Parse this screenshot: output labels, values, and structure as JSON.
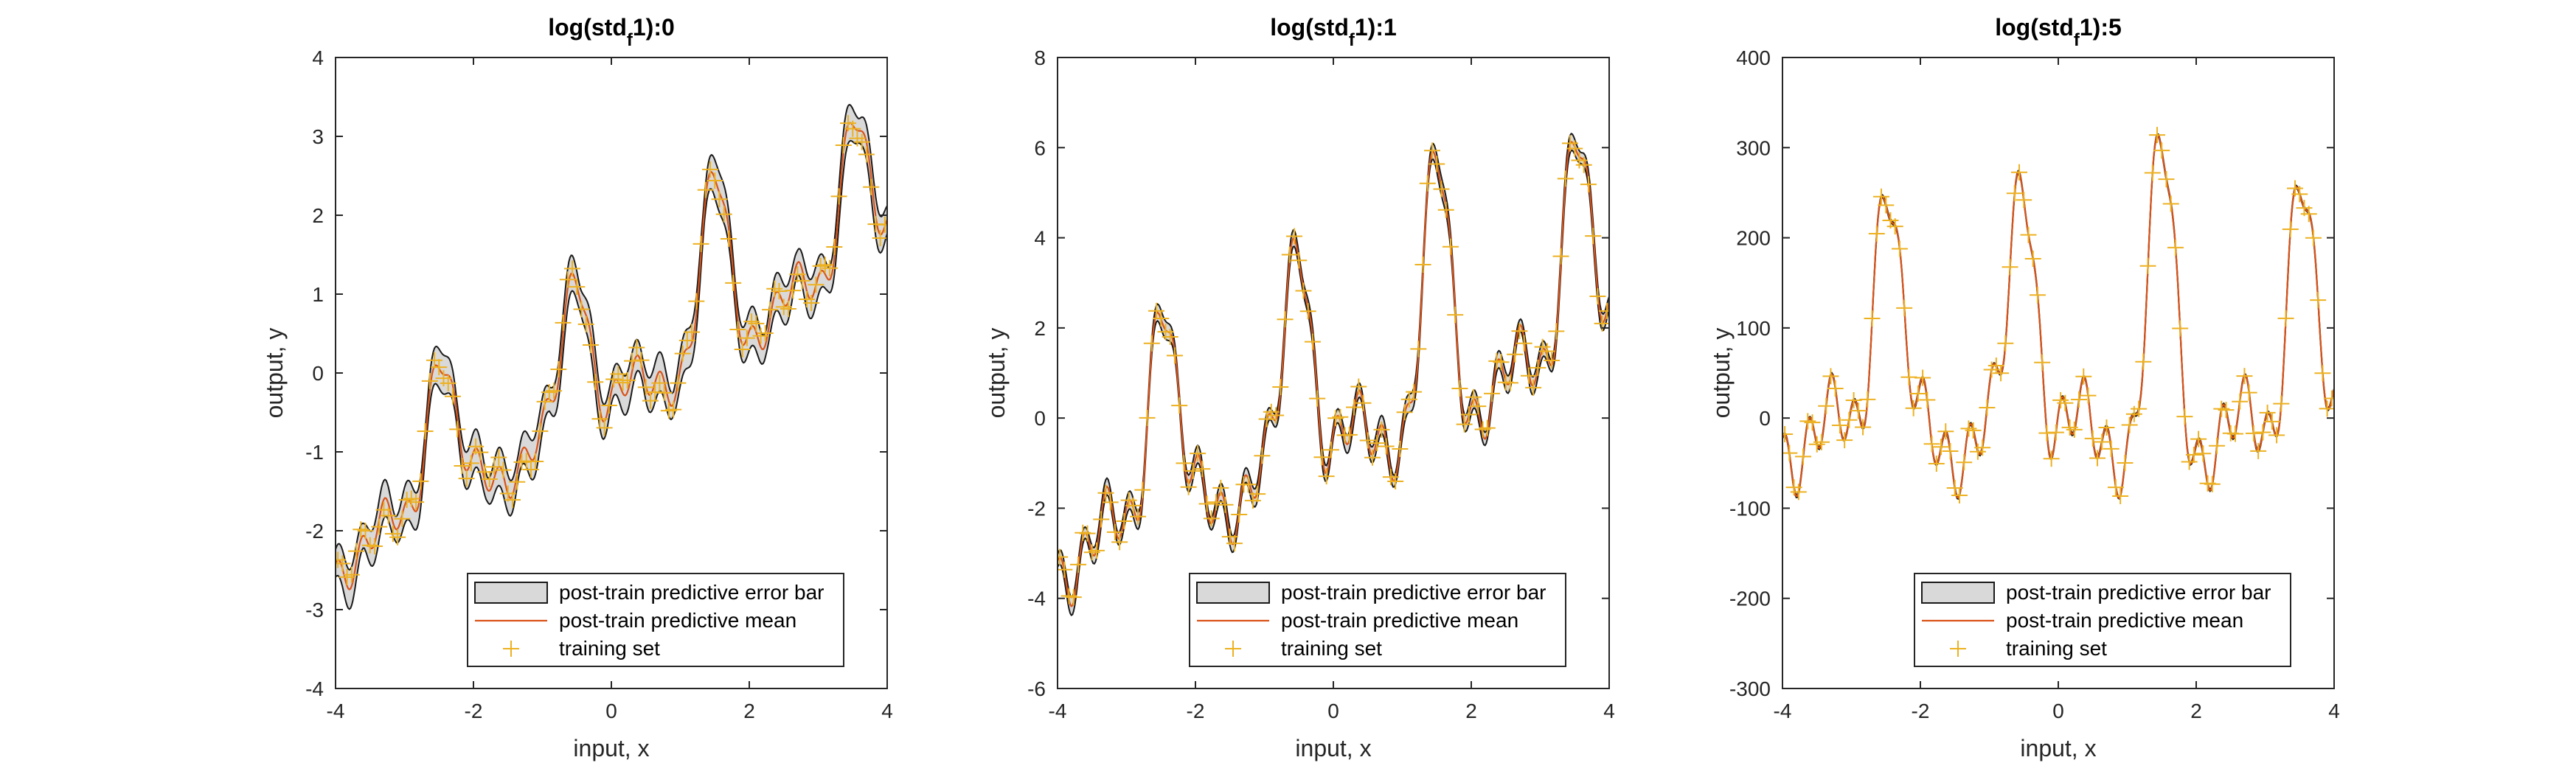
{
  "figure": {
    "colors": {
      "band_fill": "#d9d9d9",
      "band_edge": "#1a1a1a",
      "mean_line": "#d95319",
      "train_marker": "#edb120",
      "axis": "#262626",
      "legend_edge": "#262626"
    },
    "legend": {
      "items": [
        "post-train predictive error bar",
        "post-train predictive mean",
        "training set"
      ],
      "location": "south"
    },
    "xlabel": "input, x",
    "ylabel": "output, y"
  },
  "chart_data": [
    {
      "type": "line",
      "title_main": "log(std",
      "title_sub": "f",
      "title_tail": "1):0",
      "xlim": [
        -4,
        4
      ],
      "ylim": [
        -4,
        4
      ],
      "xticks": [
        -4,
        -2,
        0,
        2,
        4
      ],
      "yticks": [
        -4,
        -3,
        -2,
        -1,
        0,
        1,
        2,
        3,
        4
      ],
      "model": {
        "trend": 0.5,
        "amp": 1.0,
        "offset": 0.0,
        "band": 0.25
      },
      "series": [
        {
          "name": "post-train predictive error bar",
          "kind": "band"
        },
        {
          "name": "post-train predictive mean",
          "kind": "line"
        },
        {
          "name": "training set",
          "kind": "markers"
        }
      ]
    },
    {
      "type": "line",
      "title_main": "log(std",
      "title_sub": "f",
      "title_tail": "1):1",
      "xlim": [
        -4,
        4
      ],
      "ylim": [
        -6,
        8
      ],
      "xticks": [
        -4,
        -2,
        0,
        2,
        4
      ],
      "yticks": [
        -6,
        -4,
        -2,
        0,
        2,
        4,
        6,
        8
      ],
      "model": {
        "trend": 0.6,
        "amp": 2.6,
        "offset": 0.3,
        "band": 0.2
      },
      "series": [
        {
          "name": "post-train predictive error bar",
          "kind": "band"
        },
        {
          "name": "post-train predictive mean",
          "kind": "line"
        },
        {
          "name": "training set",
          "kind": "markers"
        }
      ]
    },
    {
      "type": "line",
      "title_main": "log(std",
      "title_sub": "f",
      "title_tail": "1):5",
      "xlim": [
        -4,
        4
      ],
      "ylim": [
        -300,
        400
      ],
      "xticks": [
        -4,
        -2,
        0,
        2,
        4
      ],
      "yticks": [
        -300,
        -200,
        -100,
        0,
        100,
        200,
        300,
        400
      ],
      "model": {
        "trend": 0.0,
        "amp": 150,
        "offset": 40,
        "band": 1.5
      },
      "series": [
        {
          "name": "post-train predictive error bar",
          "kind": "band"
        },
        {
          "name": "post-train predictive mean",
          "kind": "line"
        },
        {
          "name": "training set",
          "kind": "markers"
        }
      ]
    }
  ]
}
